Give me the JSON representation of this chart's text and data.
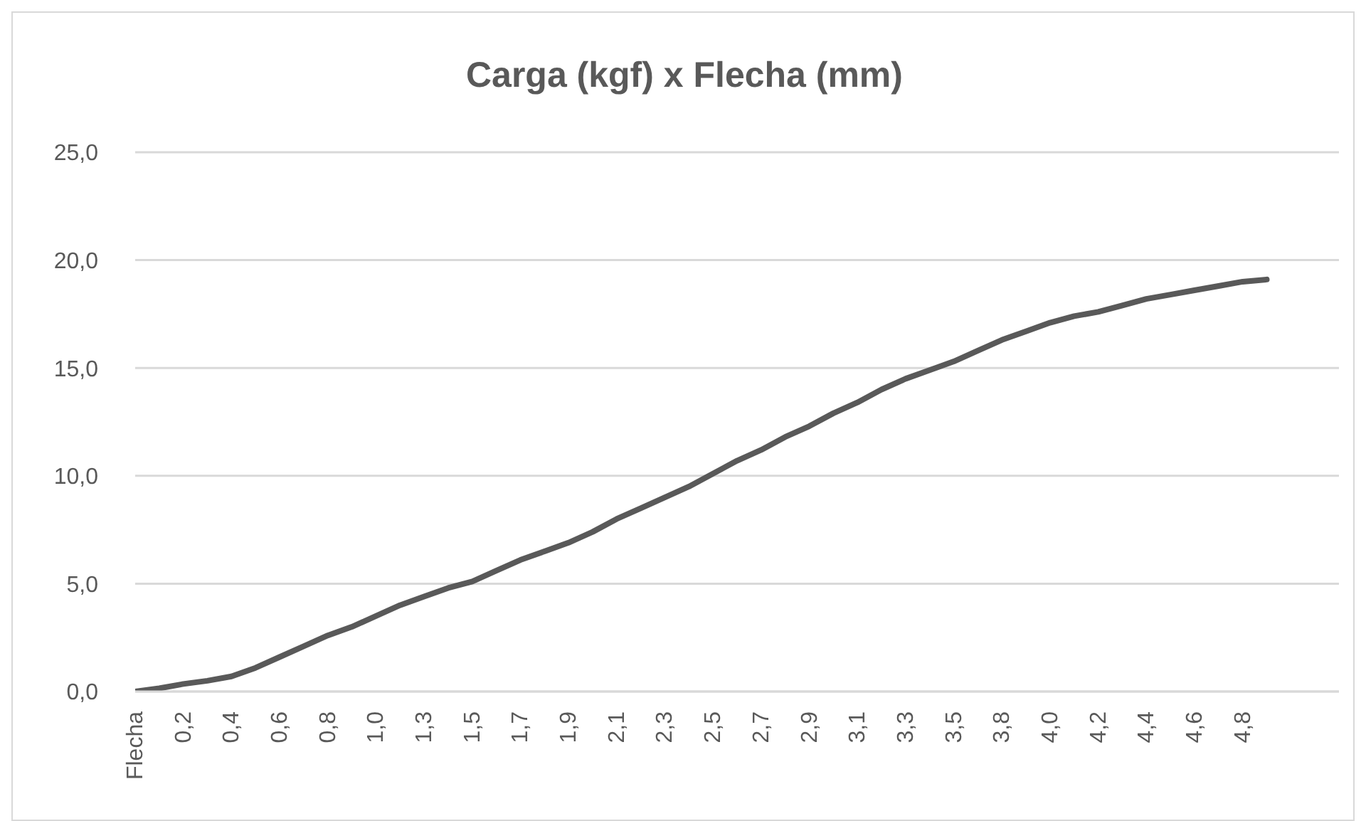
{
  "chart_data": {
    "type": "line",
    "title": "Carga (kgf) x Flecha (mm)",
    "categories": [
      "Flecha",
      null,
      "0,2",
      null,
      "0,4",
      null,
      "0,6",
      null,
      "0,8",
      null,
      "1,0",
      null,
      "1,3",
      null,
      "1,5",
      null,
      "1,7",
      null,
      "1,9",
      null,
      "2,1",
      null,
      "2,3",
      null,
      "2,5",
      null,
      "2,7",
      null,
      "2,9",
      null,
      "3,1",
      null,
      "3,3",
      null,
      "3,5",
      null,
      "3,8",
      null,
      "4,0",
      null,
      "4,2",
      null,
      "4,4",
      null,
      "4,6",
      null,
      "4,8",
      null,
      null,
      null,
      null
    ],
    "series": [
      {
        "color": "#595959",
        "values": [
          0,
          0.15,
          0.35,
          0.5,
          0.7,
          1.1,
          1.6,
          2.1,
          2.6,
          3.0,
          3.5,
          4.0,
          4.4,
          4.8,
          5.1,
          5.6,
          6.1,
          6.5,
          6.9,
          7.4,
          8.0,
          8.5,
          9.0,
          9.5,
          10.1,
          10.7,
          11.2,
          11.8,
          12.3,
          12.9,
          13.4,
          14.0,
          14.5,
          14.9,
          15.3,
          15.8,
          16.3,
          16.7,
          17.1,
          17.4,
          17.6,
          17.9,
          18.2,
          18.4,
          18.6,
          18.8,
          19.0,
          19.1,
          null,
          null,
          null
        ]
      }
    ],
    "ylim": [
      0,
      25
    ],
    "yticks": [
      {
        "value": 0,
        "label": "0,0"
      },
      {
        "value": 5,
        "label": "5,0"
      },
      {
        "value": 10,
        "label": "10,0"
      },
      {
        "value": 15,
        "label": "15,0"
      },
      {
        "value": 20,
        "label": "20,0"
      },
      {
        "value": 25,
        "label": "25,0"
      }
    ],
    "grid": "y",
    "legend": false,
    "marker": "none",
    "line_style": "solid"
  }
}
